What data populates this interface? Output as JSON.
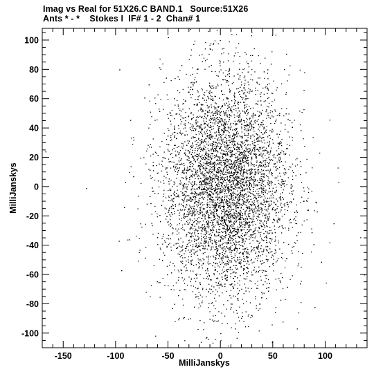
{
  "header": {
    "title_line1": "Imag vs Real for 51X26.C BAND.1   Source:51X26",
    "title_line2": "Ants * - *    Stokes I  IF# 1 - 2  Chan# 1"
  },
  "chart_data": {
    "type": "scatter",
    "xlabel": "MilliJanskys",
    "ylabel": "MilliJanskys",
    "xlim": [
      -170,
      140
    ],
    "ylim": [
      -110,
      108
    ],
    "x_ticks_major": [
      -150,
      -100,
      -50,
      0,
      50,
      100
    ],
    "x_tick_labels": [
      "-150",
      "-100",
      "-50",
      "0",
      "50",
      "100"
    ],
    "y_ticks_major": [
      -100,
      -80,
      -60,
      -40,
      -20,
      0,
      20,
      40,
      60,
      80,
      100
    ],
    "y_tick_labels": [
      "-100",
      "-80",
      "-60",
      "-40",
      "-20",
      "0",
      "20",
      "40",
      "60",
      "80",
      "100"
    ],
    "x_ticks_minor_step": 10,
    "y_ticks_minor_step": 5,
    "grid": false,
    "point_color": "#000000",
    "distribution": {
      "shape": "elliptical cloud of visibility points",
      "x_center": 5,
      "y_center": 0,
      "x_std": 30,
      "y_std": 38,
      "n_points": 6000
    },
    "outliers": [
      {
        "x": -167,
        "y": 24
      },
      {
        "x": -128,
        "y": -1
      },
      {
        "x": -97,
        "y": -37
      },
      {
        "x": -92,
        "y": -14
      },
      {
        "x": -91,
        "y": 3
      },
      {
        "x": -87,
        "y": -36
      },
      {
        "x": -83,
        "y": 32
      },
      {
        "x": 92,
        "y": -17
      },
      {
        "x": 108,
        "y": -25
      },
      {
        "x": 137,
        "y": -60
      },
      {
        "x": 80,
        "y": 78
      },
      {
        "x": -12,
        "y": -104
      },
      {
        "x": 0,
        "y": -100
      },
      {
        "x": -50,
        "y": 102
      }
    ]
  }
}
